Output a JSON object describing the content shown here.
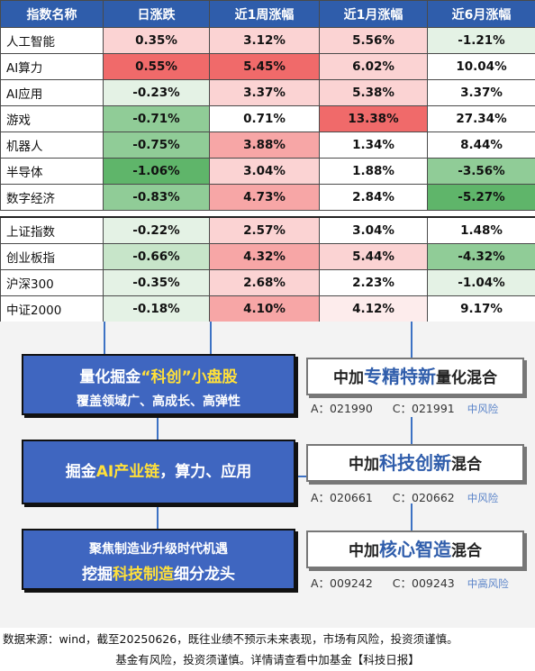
{
  "table": {
    "headers": [
      "指数名称",
      "日涨跌",
      "近1周涨幅",
      "近1月涨幅",
      "近6月涨幅"
    ],
    "group1": [
      {
        "name": "人工智能",
        "d": "0.35%",
        "w": "3.12%",
        "m": "5.56%",
        "h": "-1.21%"
      },
      {
        "name": "AI算力",
        "d": "0.55%",
        "w": "5.45%",
        "m": "6.02%",
        "h": "10.04%"
      },
      {
        "name": "AI应用",
        "d": "-0.23%",
        "w": "3.37%",
        "m": "5.38%",
        "h": "3.37%"
      },
      {
        "name": "游戏",
        "d": "-0.71%",
        "w": "0.71%",
        "m": "13.38%",
        "h": "27.34%"
      },
      {
        "name": "机器人",
        "d": "-0.75%",
        "w": "3.88%",
        "m": "1.34%",
        "h": "8.44%"
      },
      {
        "name": "半导体",
        "d": "-1.06%",
        "w": "3.04%",
        "m": "1.88%",
        "h": "-3.56%"
      },
      {
        "name": "数字经济",
        "d": "-0.83%",
        "w": "4.73%",
        "m": "2.84%",
        "h": "-5.27%"
      }
    ],
    "group2": [
      {
        "name": "上证指数",
        "d": "-0.22%",
        "w": "2.57%",
        "m": "3.04%",
        "h": "1.48%"
      },
      {
        "name": "创业板指",
        "d": "-0.66%",
        "w": "4.32%",
        "m": "5.44%",
        "h": "-4.32%"
      },
      {
        "name": "沪深300",
        "d": "-0.35%",
        "w": "2.68%",
        "m": "2.23%",
        "h": "-1.04%"
      },
      {
        "name": "中证2000",
        "d": "-0.18%",
        "w": "4.10%",
        "m": "4.12%",
        "h": "9.17%"
      }
    ]
  },
  "themes": {
    "t1_prefix": "量化掘金",
    "t1_highlight": "“科创”",
    "t1_suffix": "小盘股",
    "t1_sub": "覆盖领域广、高成长、高弹性",
    "t2_prefix": "掘金",
    "t2_highlight": "AI产业链",
    "t2_suffix": "，算力、应用",
    "t3_line1": "聚焦制造业升级时代机遇",
    "t3_prefix": "挖掘",
    "t3_highlight": "科技制造",
    "t3_suffix": "细分龙头"
  },
  "funds": [
    {
      "pre": "中加",
      "hl": "专精特新",
      "post": "量化混合",
      "a": "A：021990",
      "c": "C：021991",
      "risk": "中风险"
    },
    {
      "pre": "中加",
      "hl": "科技创新",
      "post": "混合",
      "a": "A：020661",
      "c": "C：020662",
      "risk": "中风险"
    },
    {
      "pre": "中加",
      "hl": "核心智造",
      "post": "混合",
      "a": "A：009242",
      "c": "C：009243",
      "risk": "中高风险"
    }
  ],
  "footer": {
    "source": "数据来源：wind，截至20250626，既往业绩不预示未来表现，市场有风险，投资须谨慎。",
    "disclaimer": "基金有风险，投资须谨慎。详情请查看中加基金【科技日报】"
  },
  "colors": {
    "header": "#2f5dab",
    "theme_box": "#3f66c0",
    "highlight": "#ffe03a",
    "up_strong": "#f06a6a",
    "down_strong": "#5fb56a"
  }
}
